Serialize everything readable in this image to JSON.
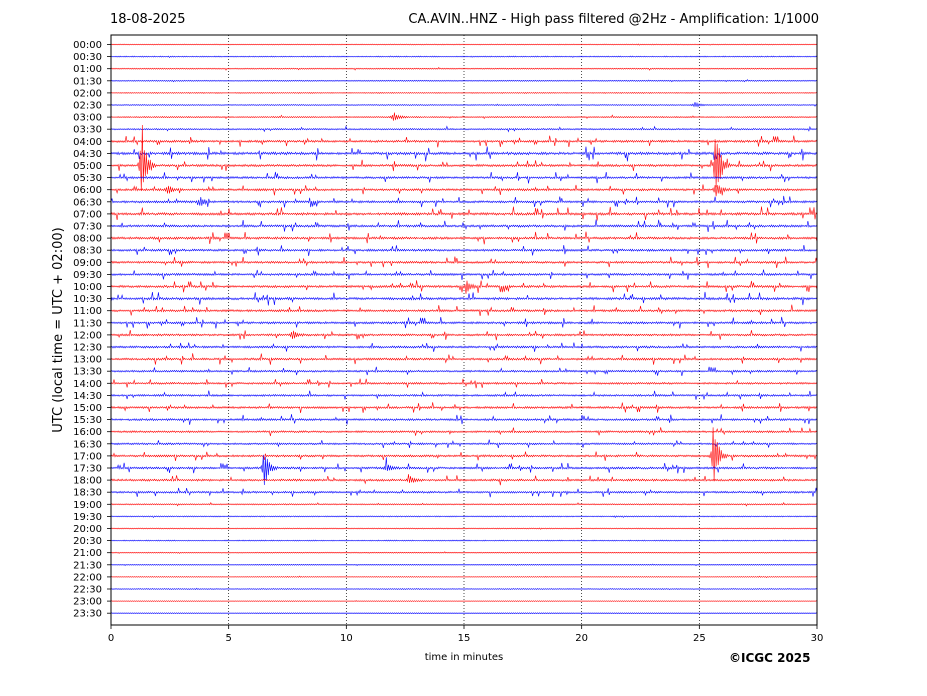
{
  "header": {
    "date": "18-08-2025",
    "title": "CA.AVIN..HNZ - High pass filtered @2Hz - Amplification: 1/1000"
  },
  "credit": "©ICGC 2025",
  "chart_data": {
    "type": "line",
    "title": "CA.AVIN..HNZ - High pass filtered @2Hz - Amplification: 1/1000",
    "xlabel": "time in minutes",
    "ylabel": "UTC (local time = UTC + 02:00)",
    "xlim": [
      0,
      30
    ],
    "xticks": [
      0,
      5,
      10,
      15,
      20,
      25,
      30
    ],
    "xtick_labels": [
      "0",
      "5",
      "10",
      "15",
      "20",
      "25",
      "30"
    ],
    "vertical_gridlines": [
      5,
      10,
      15,
      20,
      25
    ],
    "row_labels": [
      "00:00",
      "00:30",
      "01:00",
      "01:30",
      "02:00",
      "02:30",
      "03:00",
      "03:30",
      "04:00",
      "04:30",
      "05:00",
      "05:30",
      "06:00",
      "06:30",
      "07:00",
      "07:30",
      "08:00",
      "08:30",
      "09:00",
      "09:30",
      "10:00",
      "10:30",
      "11:00",
      "11:30",
      "12:00",
      "12:30",
      "13:00",
      "13:30",
      "14:00",
      "14:30",
      "15:00",
      "15:30",
      "16:00",
      "16:30",
      "17:00",
      "17:30",
      "18:00",
      "18:30",
      "19:00",
      "19:30",
      "20:00",
      "20:30",
      "21:00",
      "21:30",
      "22:00",
      "22:30",
      "23:00",
      "23:30"
    ],
    "trace_colors": [
      "#ff0000",
      "#0000ff"
    ],
    "row_activity": [
      0.05,
      0.06,
      0.12,
      0.08,
      0.05,
      0.08,
      0.15,
      0.25,
      0.55,
      0.75,
      0.6,
      0.55,
      0.55,
      0.55,
      0.7,
      0.6,
      0.6,
      0.55,
      0.55,
      0.55,
      0.6,
      0.65,
      0.55,
      0.55,
      0.5,
      0.5,
      0.55,
      0.45,
      0.45,
      0.45,
      0.5,
      0.5,
      0.45,
      0.4,
      0.5,
      0.5,
      0.5,
      0.45,
      0.15,
      0.08,
      0.08,
      0.06,
      0.05,
      0.04,
      0.04,
      0.05,
      0.03,
      0.03
    ],
    "events": [
      {
        "row": 6,
        "minute": 12.0,
        "amplitude": 6
      },
      {
        "row": 5,
        "minute": 24.8,
        "amplitude": 3
      },
      {
        "row": 10,
        "minute": 1.3,
        "amplitude": 48
      },
      {
        "row": 10,
        "minute": 25.7,
        "amplitude": 45
      },
      {
        "row": 12,
        "minute": 2.4,
        "amplitude": 6
      },
      {
        "row": 12,
        "minute": 25.7,
        "amplitude": 10
      },
      {
        "row": 13,
        "minute": 3.8,
        "amplitude": 5
      },
      {
        "row": 20,
        "minute": 15.1,
        "amplitude": 7
      },
      {
        "row": 24,
        "minute": 7.7,
        "amplitude": 5
      },
      {
        "row": 34,
        "minute": 25.6,
        "amplitude": 38
      },
      {
        "row": 35,
        "minute": 6.5,
        "amplitude": 22
      },
      {
        "row": 35,
        "minute": 11.7,
        "amplitude": 6
      },
      {
        "row": 36,
        "minute": 12.7,
        "amplitude": 4
      }
    ]
  }
}
